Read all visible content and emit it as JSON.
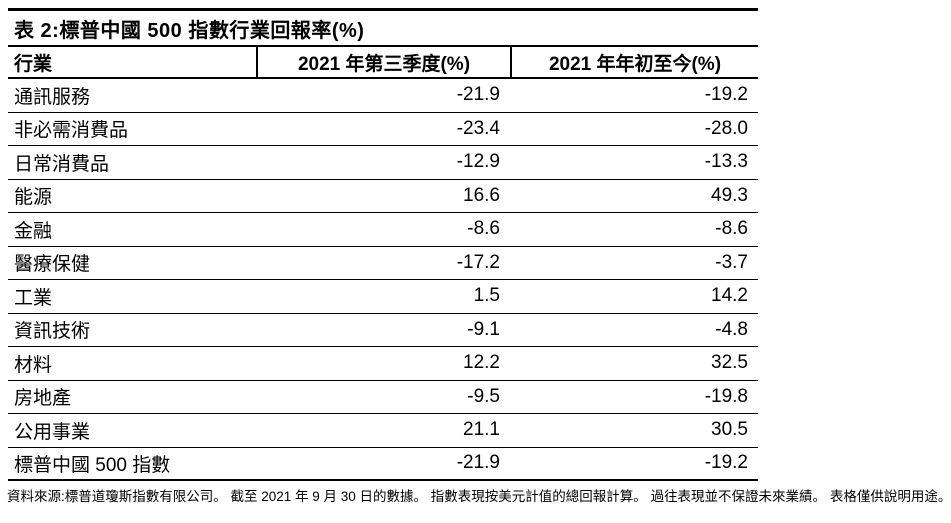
{
  "page": {
    "background": "#ffffff",
    "text_color": "#000000",
    "line_color": "#000000"
  },
  "table": {
    "title": "表 2:標普中國 500 指數行業回報率(%)",
    "columns": {
      "sector": "行業",
      "q3": "2021 年第三季度(%)",
      "ytd": "2021 年年初至今(%)"
    },
    "rows": [
      {
        "sector": "通訊服務",
        "q3": "-21.9",
        "ytd": "-19.2"
      },
      {
        "sector": "非必需消費品",
        "q3": "-23.4",
        "ytd": "-28.0"
      },
      {
        "sector": "日常消費品",
        "q3": "-12.9",
        "ytd": "-13.3"
      },
      {
        "sector": "能源",
        "q3": "16.6",
        "ytd": "49.3"
      },
      {
        "sector": "金融",
        "q3": "-8.6",
        "ytd": "-8.6"
      },
      {
        "sector": "醫療保健",
        "q3": "-17.2",
        "ytd": "-3.7"
      },
      {
        "sector": "工業",
        "q3": "1.5",
        "ytd": "14.2"
      },
      {
        "sector": "資訊技術",
        "q3": "-9.1",
        "ytd": "-4.8"
      },
      {
        "sector": "材料",
        "q3": "12.2",
        "ytd": "32.5"
      },
      {
        "sector": "房地產",
        "q3": "-9.5",
        "ytd": "-19.8"
      },
      {
        "sector": "公用事業",
        "q3": "21.1",
        "ytd": "30.5"
      },
      {
        "sector": "標普中國 500 指數",
        "q3": "-21.9",
        "ytd": "-19.2"
      }
    ]
  },
  "footnote": "資料來源:標普道瓊斯指數有限公司。 截至 2021 年 9 月 30 日的數據。 指數表現按美元計值的總回報計算。 過往表現並不保證未來業績。 表格僅供說明用途。"
}
